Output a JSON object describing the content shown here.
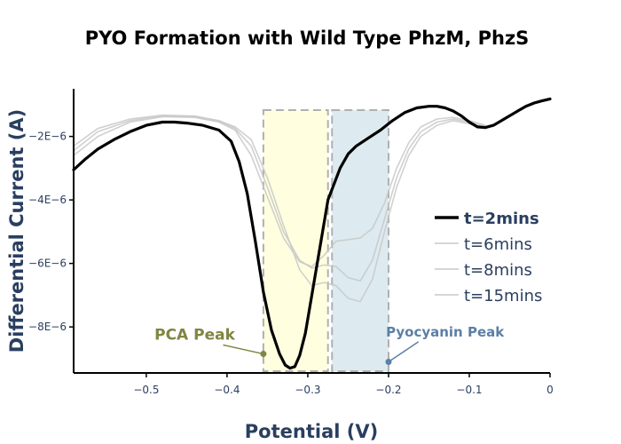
{
  "chart_data": {
    "type": "line",
    "title": "PYO Formation with Wild Type PhzM, PhzS",
    "xlabel": "Potential (V)",
    "ylabel": "Differential Current (A)",
    "xlim": [
      -0.59,
      0.0
    ],
    "ylim": [
      -9.45e-06,
      -5e-07
    ],
    "x_ticks": [
      -0.5,
      -0.4,
      -0.3,
      -0.2,
      -0.1,
      0
    ],
    "x_tick_labels": [
      "−0.5",
      "−0.4",
      "−0.3",
      "−0.2",
      "−0.1",
      "0"
    ],
    "y_ticks": [
      -8e-06,
      -6e-06,
      -4e-06,
      -2e-06
    ],
    "y_tick_labels": [
      "−8E−6",
      "−6E−6",
      "−4E−6",
      "−2E−6"
    ],
    "grid": false,
    "legend_position": "right",
    "shaded_regions": [
      {
        "x0": -0.355,
        "x1": -0.275,
        "color": "#ffffe0",
        "stroke": "#b0b0b0"
      },
      {
        "x0": -0.27,
        "x1": -0.2,
        "color": "#ddebf0",
        "stroke": "#b0b0b0"
      }
    ],
    "annotations": [
      {
        "text": "PCA Peak",
        "x": -0.355,
        "y": -8.85e-06,
        "color": "#808541",
        "font_size": 17,
        "label_x": -0.44,
        "label_y": -8.4e-06
      },
      {
        "text": "Pyocyanin Peak",
        "x": -0.2,
        "y": -9.1e-06,
        "color": "#5b7fa6",
        "font_size": 15,
        "label_x": -0.13,
        "label_y": -8.3e-06
      }
    ],
    "series": [
      {
        "name": "t=2mins",
        "color": "#000000",
        "width": 3.2,
        "bold_legend": true,
        "x": [
          -0.59,
          -0.575,
          -0.56,
          -0.54,
          -0.52,
          -0.5,
          -0.48,
          -0.465,
          -0.45,
          -0.43,
          -0.41,
          -0.395,
          -0.385,
          -0.375,
          -0.365,
          -0.355,
          -0.345,
          -0.335,
          -0.328,
          -0.322,
          -0.316,
          -0.31,
          -0.303,
          -0.295,
          -0.285,
          -0.275,
          -0.26,
          -0.25,
          -0.24,
          -0.225,
          -0.21,
          -0.195,
          -0.18,
          -0.165,
          -0.15,
          -0.14,
          -0.13,
          -0.12,
          -0.11,
          -0.1,
          -0.09,
          -0.08,
          -0.07,
          -0.06,
          -0.05,
          -0.04,
          -0.03,
          -0.02,
          -0.01,
          0.0
        ],
        "y": [
          -3.05e-06,
          -2.7e-06,
          -2.4e-06,
          -2.1e-06,
          -1.85e-06,
          -1.65e-06,
          -1.55e-06,
          -1.55e-06,
          -1.58e-06,
          -1.65e-06,
          -1.8e-06,
          -2.15e-06,
          -2.8e-06,
          -3.8e-06,
          -5.3e-06,
          -6.9e-06,
          -8.1e-06,
          -8.85e-06,
          -9.2e-06,
          -9.3e-06,
          -9.25e-06,
          -8.9e-06,
          -8.2e-06,
          -7e-06,
          -5.5e-06,
          -4e-06,
          -3e-06,
          -2.55e-06,
          -2.3e-06,
          -2.05e-06,
          -1.8e-06,
          -1.5e-06,
          -1.25e-06,
          -1.1e-06,
          -1.05e-06,
          -1.05e-06,
          -1.1e-06,
          -1.2e-06,
          -1.35e-06,
          -1.55e-06,
          -1.7e-06,
          -1.72e-06,
          -1.65e-06,
          -1.5e-06,
          -1.35e-06,
          -1.2e-06,
          -1.05e-06,
          -9.5e-07,
          -8.8e-07,
          -8.2e-07
        ]
      },
      {
        "name": "t=6mins",
        "color": "#c8c8c8",
        "width": 1.6,
        "x": [
          -0.59,
          -0.56,
          -0.52,
          -0.48,
          -0.44,
          -0.41,
          -0.39,
          -0.37,
          -0.35,
          -0.33,
          -0.31,
          -0.295,
          -0.28,
          -0.265,
          -0.25,
          -0.235,
          -0.22,
          -0.205,
          -0.19,
          -0.175,
          -0.16,
          -0.14,
          -0.12,
          -0.1,
          -0.08
        ],
        "y": [
          -2.6e-06,
          -2e-06,
          -1.55e-06,
          -1.38e-06,
          -1.4e-06,
          -1.55e-06,
          -1.8e-06,
          -2.6e-06,
          -3.9e-06,
          -5.2e-06,
          -5.95e-06,
          -6.1e-06,
          -5.75e-06,
          -5.3e-06,
          -5.25e-06,
          -5.2e-06,
          -4.9e-06,
          -4.1e-06,
          -3e-06,
          -2.2e-06,
          -1.7e-06,
          -1.45e-06,
          -1.4e-06,
          -1.5e-06,
          -1.65e-06
        ]
      },
      {
        "name": "t=8mins",
        "color": "#c8c8c8",
        "width": 1.6,
        "x": [
          -0.59,
          -0.56,
          -0.52,
          -0.48,
          -0.44,
          -0.41,
          -0.39,
          -0.37,
          -0.35,
          -0.33,
          -0.31,
          -0.295,
          -0.28,
          -0.265,
          -0.25,
          -0.235,
          -0.22,
          -0.205,
          -0.19,
          -0.175,
          -0.16,
          -0.14,
          -0.12,
          -0.1,
          -0.08
        ],
        "y": [
          -2.45e-06,
          -1.85e-06,
          -1.5e-06,
          -1.35e-06,
          -1.38e-06,
          -1.52e-06,
          -1.75e-06,
          -2.3e-06,
          -3.6e-06,
          -5e-06,
          -5.9e-06,
          -6.15e-06,
          -6.05e-06,
          -6.1e-06,
          -6.45e-06,
          -6.55e-06,
          -5.9e-06,
          -4.6e-06,
          -3.3e-06,
          -2.4e-06,
          -1.85e-06,
          -1.55e-06,
          -1.45e-06,
          -1.55e-06,
          -1.7e-06
        ]
      },
      {
        "name": "t=15mins",
        "color": "#c8c8c8",
        "width": 1.6,
        "x": [
          -0.59,
          -0.56,
          -0.52,
          -0.48,
          -0.44,
          -0.41,
          -0.39,
          -0.37,
          -0.35,
          -0.33,
          -0.31,
          -0.295,
          -0.28,
          -0.265,
          -0.25,
          -0.235,
          -0.22,
          -0.205,
          -0.19,
          -0.175,
          -0.16,
          -0.14,
          -0.12,
          -0.1,
          -0.08
        ],
        "y": [
          -2.3e-06,
          -1.75e-06,
          -1.45e-06,
          -1.33e-06,
          -1.36e-06,
          -1.5e-06,
          -1.7e-06,
          -2.1e-06,
          -3.3e-06,
          -4.8e-06,
          -6.2e-06,
          -6.7e-06,
          -6.6e-06,
          -6.7e-06,
          -7.1e-06,
          -7.2e-06,
          -6.5e-06,
          -5e-06,
          -3.6e-06,
          -2.6e-06,
          -2e-06,
          -1.65e-06,
          -1.5e-06,
          -1.6e-06,
          -1.75e-06
        ]
      }
    ]
  }
}
